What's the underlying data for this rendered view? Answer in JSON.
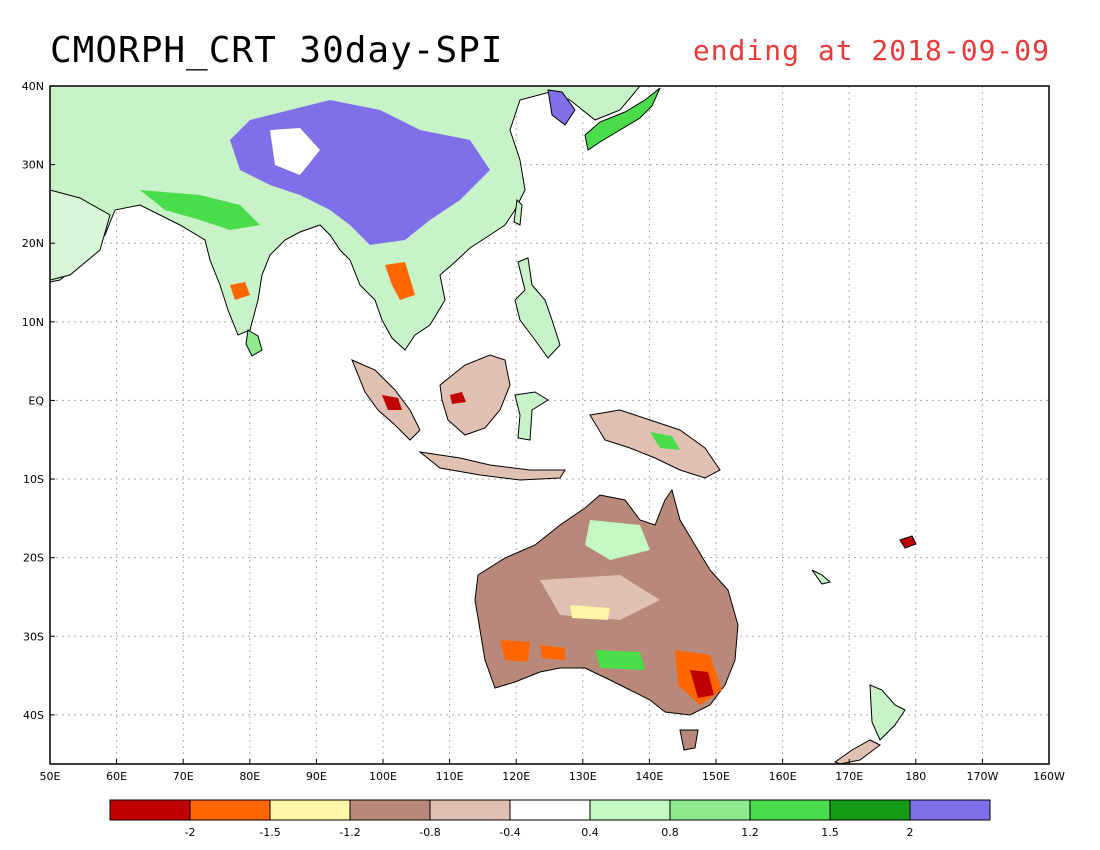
{
  "title": "CMORPH_CRT 30day-SPI",
  "subtitle": "ending at 2018-09-09",
  "subtitle_color": "#e8393b",
  "map": {
    "lon_ticks": [
      "50E",
      "60E",
      "70E",
      "80E",
      "90E",
      "100E",
      "110E",
      "120E",
      "130E",
      "140E",
      "150E",
      "160E",
      "170E",
      "180",
      "170W",
      "160W"
    ],
    "lat_ticks": [
      "40N",
      "30N",
      "20N",
      "10N",
      "EQ",
      "10S",
      "20S",
      "30S",
      "40S"
    ]
  },
  "colorbar": {
    "colors": [
      "#c00000",
      "#ff6600",
      "#fff6a8",
      "#b8897a",
      "#dfc0b2",
      "#ffffff",
      "#c4f9c4",
      "#8fe98f",
      "#4bdc4b",
      "#159b15",
      "#7f6fe8"
    ],
    "labels": [
      "-2",
      "-1.5",
      "-1.2",
      "-0.8",
      "-0.4",
      "0.4",
      "0.8",
      "1.2",
      "1.5",
      "2"
    ]
  }
}
